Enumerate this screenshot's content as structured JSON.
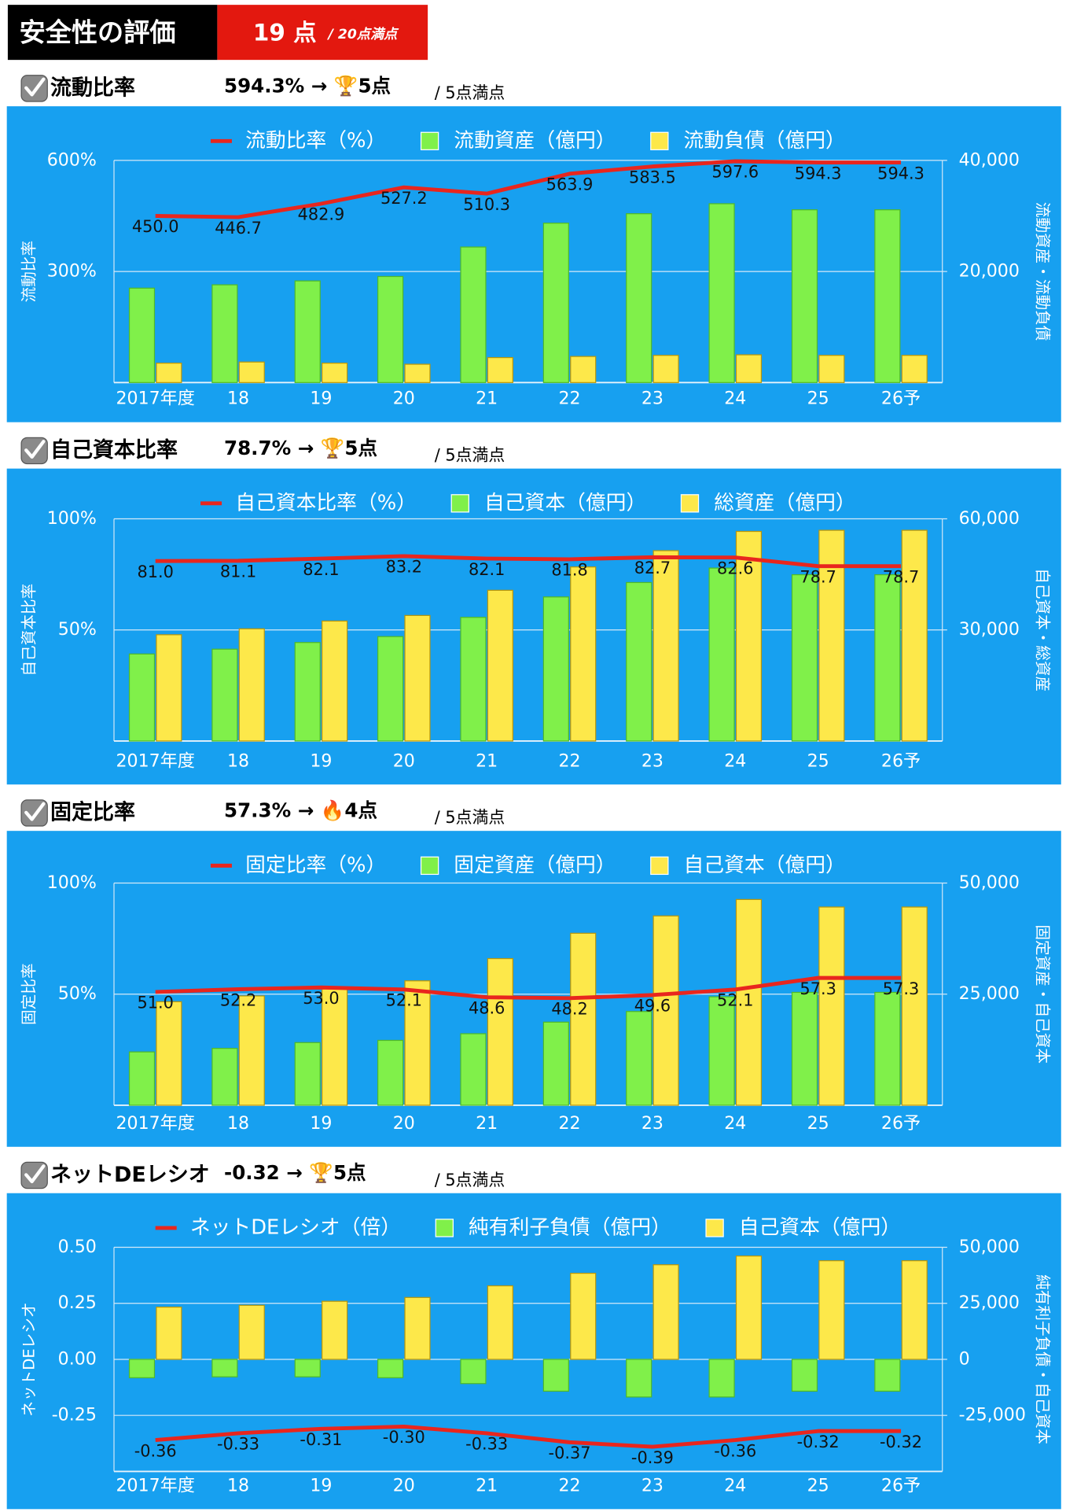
{
  "header": {
    "title": "安全性の評価",
    "score": "19 点",
    "max": "/ 20点満点"
  },
  "sections": [
    {
      "title": "流動比率",
      "result": "594.3% → 🏆5点",
      "max": "/ 5点満点"
    },
    {
      "title": "自己資本比率",
      "result": "78.7% → 🏆5点",
      "max": "/ 5点満点"
    },
    {
      "title": "固定比率",
      "result": "57.3% → 🔥4点",
      "max": "/ 5点満点"
    },
    {
      "title": "ネットDEレシオ",
      "result": "-0.32 → 🏆5点",
      "max": "/ 5点満点"
    }
  ],
  "chart_data": [
    {
      "type": "bar",
      "y_label": "流動比率",
      "y2_label": "流動資産・流動負債",
      "categories": [
        "2017年度",
        "18",
        "19",
        "20",
        "21",
        "22",
        "23",
        "24",
        "25",
        "26予"
      ],
      "ylim": [
        0,
        600
      ],
      "yticks": [
        {
          "value": 300,
          "label": "300%"
        },
        {
          "value": 600,
          "label": "600%"
        }
      ],
      "y2lim": [
        0,
        40000
      ],
      "y2ticks": [
        {
          "value": 20000,
          "label": "20,000"
        },
        {
          "value": 40000,
          "label": "40,000"
        }
      ],
      "grid": true,
      "series": [
        {
          "name": "流動比率（%）",
          "type": "line",
          "color": "#e8261e",
          "axis": "y",
          "values": [
            450.0,
            446.7,
            482.9,
            527.2,
            510.3,
            563.9,
            583.5,
            597.6,
            594.3,
            594.3
          ],
          "value_labels": [
            "450.0",
            "446.7",
            "482.9",
            "527.2",
            "510.3",
            "563.9",
            "583.5",
            "597.6",
            "594.3",
            "594.3"
          ]
        },
        {
          "name": "流動資産（億円）",
          "type": "bar",
          "color": "#80f04a",
          "axis": "y2",
          "values": [
            17000,
            17600,
            18300,
            19100,
            24400,
            28700,
            30400,
            32200,
            31100,
            31100
          ]
        },
        {
          "name": "流動負債（億円）",
          "type": "bar",
          "color": "#fde84a",
          "axis": "y2",
          "values": [
            3500,
            3700,
            3500,
            3300,
            4500,
            4700,
            4900,
            5000,
            4900,
            4900
          ]
        }
      ]
    },
    {
      "type": "bar",
      "y_label": "自己資本比率",
      "y2_label": "自己資本・総資産",
      "categories": [
        "2017年度",
        "18",
        "19",
        "20",
        "21",
        "22",
        "23",
        "24",
        "25",
        "26予"
      ],
      "ylim": [
        0,
        100
      ],
      "yticks": [
        {
          "value": 50,
          "label": "50%"
        },
        {
          "value": 100,
          "label": "100%"
        }
      ],
      "y2lim": [
        0,
        60000
      ],
      "y2ticks": [
        {
          "value": 30000,
          "label": "30,000"
        },
        {
          "value": 60000,
          "label": "60,000"
        }
      ],
      "grid": true,
      "series": [
        {
          "name": "自己資本比率（%）",
          "type": "line",
          "color": "#e8261e",
          "axis": "y",
          "values": [
            81.0,
            81.1,
            82.1,
            83.2,
            82.1,
            81.8,
            82.7,
            82.6,
            78.7,
            78.7
          ],
          "value_labels": [
            "81.0",
            "81.1",
            "82.1",
            "83.2",
            "82.1",
            "81.8",
            "82.7",
            "82.6",
            "78.7",
            "78.7"
          ]
        },
        {
          "name": "自己資本（億円）",
          "type": "bar",
          "color": "#80f04a",
          "axis": "y2",
          "values": [
            23500,
            24800,
            26600,
            28200,
            33400,
            38900,
            42800,
            46700,
            44900,
            44900
          ]
        },
        {
          "name": "総資産（億円）",
          "type": "bar",
          "color": "#fde84a",
          "axis": "y2",
          "values": [
            28700,
            30300,
            32400,
            33900,
            40700,
            47000,
            51400,
            56600,
            56900,
            56900
          ]
        }
      ]
    },
    {
      "type": "bar",
      "y_label": "固定比率",
      "y2_label": "固定資産・自己資本",
      "categories": [
        "2017年度",
        "18",
        "19",
        "20",
        "21",
        "22",
        "23",
        "24",
        "25",
        "26予"
      ],
      "ylim": [
        0,
        100
      ],
      "yticks": [
        {
          "value": 50,
          "label": "50%"
        },
        {
          "value": 100,
          "label": "100%"
        }
      ],
      "y2lim": [
        0,
        50000
      ],
      "y2ticks": [
        {
          "value": 25000,
          "label": "25,000"
        },
        {
          "value": 50000,
          "label": "50,000"
        }
      ],
      "grid": true,
      "series": [
        {
          "name": "固定比率（%）",
          "type": "line",
          "color": "#e8261e",
          "axis": "y",
          "values": [
            51.0,
            52.2,
            53.0,
            52.1,
            48.6,
            48.2,
            49.6,
            52.1,
            57.3,
            57.3
          ],
          "value_labels": [
            "51.0",
            "52.2",
            "53.0",
            "52.1",
            "48.6",
            "48.2",
            "49.6",
            "52.1",
            "57.3",
            "57.3"
          ]
        },
        {
          "name": "固定資産（億円）",
          "type": "bar",
          "color": "#80f04a",
          "axis": "y2",
          "values": [
            12000,
            12800,
            14100,
            14600,
            16100,
            18700,
            21100,
            24400,
            25400,
            25400
          ]
        },
        {
          "name": "自己資本（億円）",
          "type": "bar",
          "color": "#fde84a",
          "axis": "y2",
          "values": [
            23300,
            24600,
            26300,
            28000,
            33000,
            38700,
            42600,
            46300,
            44600,
            44600
          ]
        }
      ]
    },
    {
      "type": "bar",
      "y_label": "ネットDEレシオ",
      "y2_label": "純有利子負債・自己資本",
      "categories": [
        "2017年度",
        "18",
        "19",
        "20",
        "21",
        "22",
        "23",
        "24",
        "25",
        "26予"
      ],
      "ylim": [
        -0.5,
        0.5
      ],
      "yticks": [
        -0.25,
        {
          "value": 0,
          "label": "0.00"
        },
        0.25,
        {
          "value": 0.5,
          "label": "0.50"
        }
      ],
      "y2lim": [
        -50000,
        50000
      ],
      "y2ticks": [
        {
          "value": -25000,
          "label": "-25,000"
        },
        0,
        {
          "value": 25000,
          "label": "25,000"
        },
        {
          "value": 50000,
          "label": "50,000"
        }
      ],
      "grid": true,
      "series": [
        {
          "name": "ネットDEレシオ（倍）",
          "type": "line",
          "color": "#e8261e",
          "axis": "y",
          "values": [
            -0.36,
            -0.33,
            -0.31,
            -0.3,
            -0.33,
            -0.37,
            -0.39,
            -0.36,
            -0.32,
            -0.32
          ],
          "value_labels": [
            "-0.36",
            "-0.33",
            "-0.31",
            "-0.30",
            "-0.33",
            "-0.37",
            "-0.39",
            "-0.36",
            "-0.32",
            "-0.32"
          ]
        },
        {
          "name": "純有利子負債（億円）",
          "type": "bar",
          "color": "#80f04a",
          "axis": "y2",
          "values": [
            -8200,
            -7800,
            -7800,
            -8200,
            -10800,
            -14200,
            -16800,
            -16800,
            -14200,
            -14200
          ]
        },
        {
          "name": "自己資本（億円）",
          "type": "bar",
          "color": "#fde84a",
          "axis": "y2",
          "values": [
            23300,
            24100,
            25900,
            27600,
            32800,
            38400,
            42200,
            46100,
            44000,
            44000
          ]
        }
      ]
    }
  ]
}
